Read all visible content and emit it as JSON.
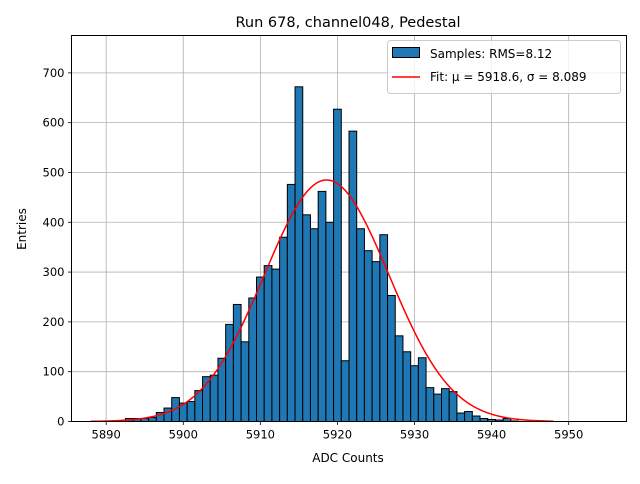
{
  "chart_data": {
    "type": "bar",
    "title": "Run 678, channel048, Pedestal",
    "xlabel": "ADC Counts",
    "ylabel": "Entries",
    "xlim": [
      5885.5,
      5957.5
    ],
    "ylim": [
      0,
      775
    ],
    "xticks": [
      5890,
      5900,
      5910,
      5920,
      5930,
      5940,
      5950
    ],
    "yticks": [
      0,
      100,
      200,
      300,
      400,
      500,
      600,
      700
    ],
    "grid": true,
    "legend_position": "top-right",
    "histogram": {
      "name": "Samples: RMS=8.12",
      "color": "#1f77b4",
      "bin_width": 1,
      "bin_centers": [
        5888,
        5889,
        5890,
        5891,
        5892,
        5893,
        5894,
        5895,
        5896,
        5897,
        5898,
        5899,
        5900,
        5901,
        5902,
        5903,
        5904,
        5905,
        5906,
        5907,
        5908,
        5909,
        5910,
        5911,
        5912,
        5913,
        5914,
        5915,
        5916,
        5917,
        5918,
        5919,
        5920,
        5921,
        5922,
        5923,
        5924,
        5925,
        5926,
        5927,
        5928,
        5929,
        5930,
        5931,
        5932,
        5933,
        5934,
        5935,
        5936,
        5937,
        5938,
        5939,
        5940,
        5941,
        5942,
        5943,
        5944,
        5945,
        5946,
        5947
      ],
      "values": [
        0,
        0,
        0,
        0,
        1,
        6,
        6,
        6,
        8,
        18,
        27,
        48,
        37,
        40,
        62,
        90,
        93,
        127,
        195,
        235,
        160,
        248,
        290,
        313,
        306,
        370,
        476,
        672,
        415,
        387,
        462,
        400,
        627,
        122,
        583,
        387,
        343,
        321,
        375,
        253,
        172,
        140,
        112,
        128,
        68,
        55,
        66,
        60,
        17,
        20,
        11,
        6,
        4,
        3,
        6,
        1,
        0,
        0,
        0,
        0
      ]
    },
    "fit": {
      "name": "Fit: μ = 5918.6, σ = 8.089",
      "color": "#ff0000",
      "mu": 5918.6,
      "sigma": 8.089,
      "amplitude": 485,
      "x_range": [
        5888,
        5948
      ]
    }
  }
}
